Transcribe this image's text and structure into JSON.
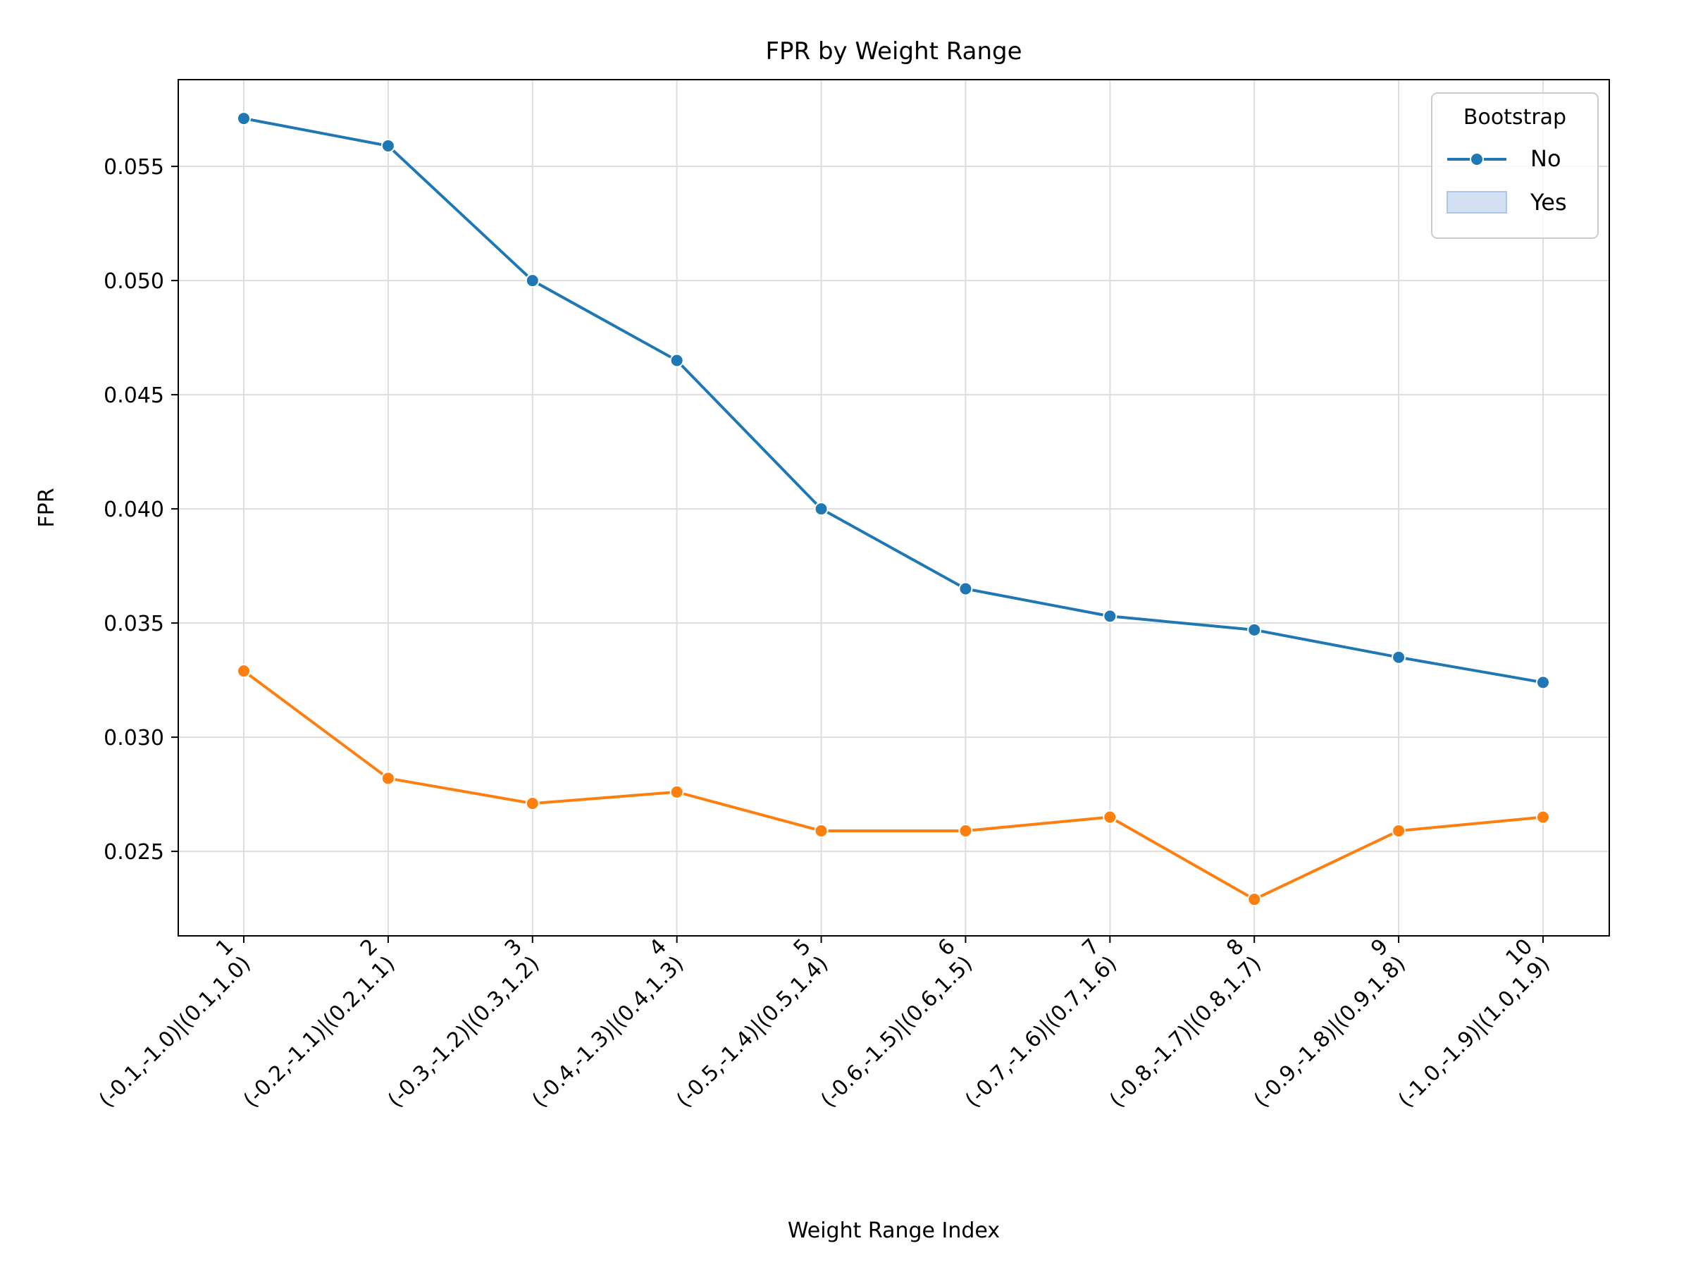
{
  "chart_data": {
    "type": "line",
    "title": "FPR by Weight Range",
    "xlabel": "Weight Range Index",
    "ylabel": "FPR",
    "categories": [
      [
        "1",
        "(-0.1,-1.0)|(0.1,1.0)"
      ],
      [
        "2",
        "(-0.2,-1.1)|(0.2,1.1)"
      ],
      [
        "3",
        "(-0.3,-1.2)|(0.3,1.2)"
      ],
      [
        "4",
        "(-0.4,-1.3)|(0.4,1.3)"
      ],
      [
        "5",
        "(-0.5,-1.4)|(0.5,1.4)"
      ],
      [
        "6",
        "(-0.6,-1.5)|(0.6,1.5)"
      ],
      [
        "7",
        "(-0.7,-1.6)|(0.7,1.6)"
      ],
      [
        "8",
        "(-0.8,-1.7)|(0.8,1.7)"
      ],
      [
        "9",
        "(-0.9,-1.8)|(0.9,1.8)"
      ],
      [
        "10",
        "(-1.0,-1.9)|(1.0,1.9)"
      ]
    ],
    "ylim": [
      0.0213,
      0.0588
    ],
    "yticks": [
      "0.025",
      "0.030",
      "0.035",
      "0.040",
      "0.045",
      "0.050",
      "0.055"
    ],
    "grid": true,
    "legend": {
      "title": "Bootstrap",
      "placement": "top-right",
      "entries": [
        {
          "label": "No",
          "style": "line-marker",
          "color": "#1f77b4"
        },
        {
          "label": "Yes",
          "style": "patch",
          "color": "#aec7e8"
        }
      ]
    },
    "series": [
      {
        "color": "#1f77b4",
        "values": [
          0.0571,
          0.0559,
          0.05,
          0.0465,
          0.04,
          0.0365,
          0.0353,
          0.0347,
          0.0335,
          0.0324
        ]
      },
      {
        "color": "#ff7f0e",
        "values": [
          0.0329,
          0.0282,
          0.0271,
          0.0276,
          0.0259,
          0.0259,
          0.0265,
          0.0229,
          0.0259,
          0.0265
        ]
      }
    ]
  }
}
